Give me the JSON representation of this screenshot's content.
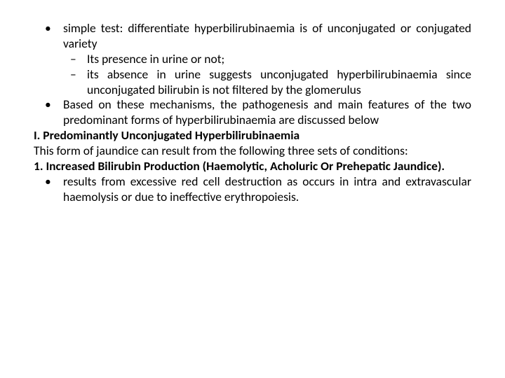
{
  "text_color": "#000000",
  "bg_color": "#ffffff",
  "font_family": "Calibri, Arial, sans-serif",
  "font_size_pt": 13,
  "bullet_l1_marker": "•",
  "bullet_l2_marker": "–",
  "items": {
    "b1": "simple test: differentiate hyperbilirubinaemia is of unconjugated or conjugated variety",
    "b1a": "Its presence in urine or not;",
    "b1b": "its absence in urine suggests unconjugated hyperbilirubinaemia since unconjugated bilirubin is not filtered by the glomerulus",
    "b2": "Based on these mechanisms, the pathogenesis and main features of the two predominant forms of hyperbilirubinaemia are discussed below",
    "h1": "I. Predominantly Unconjugated Hyperbilirubinaemia",
    "p1": "This form of jaundice can result from the following three sets of conditions:",
    "h2": "1. Increased Bilirubin Production (Haemolytic, Acholuric Or Prehepatic Jaundice).",
    "b3": "results from excessive red cell destruction as occurs in intra and extravascular haemolysis or due to ineffective erythropoiesis."
  }
}
